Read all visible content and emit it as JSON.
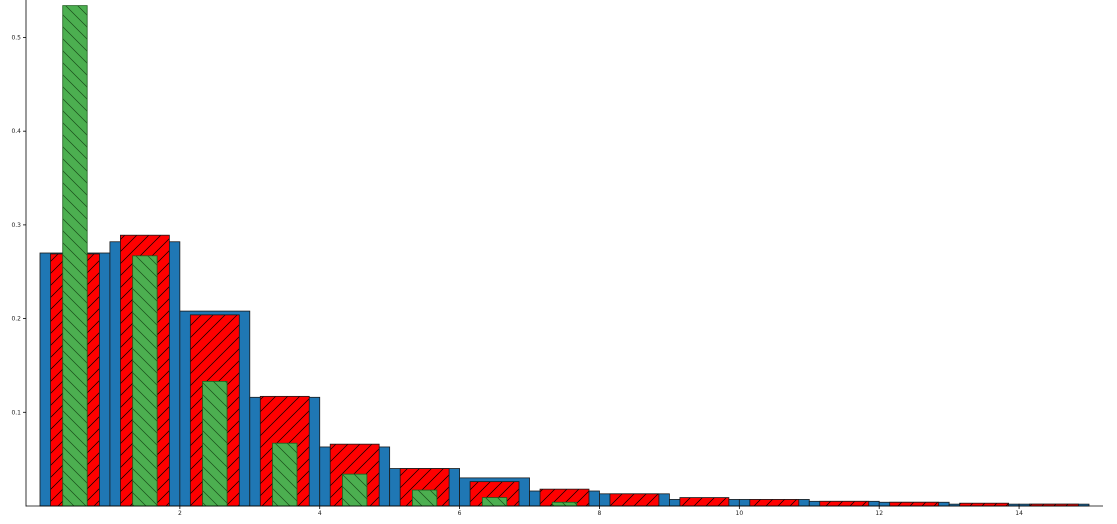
{
  "chart_data": {
    "type": "bar",
    "title": "",
    "xlabel": "",
    "ylabel": "",
    "xlim": [
      -0.2,
      15.2
    ],
    "ylim": [
      0,
      0.54
    ],
    "grid": false,
    "legend": "none",
    "x_ticks": [
      "2",
      "4",
      "6",
      "8",
      "10",
      "12",
      "14"
    ],
    "y_ticks": [
      "0.1",
      "0.2",
      "0.3",
      "0.4",
      "0.5"
    ],
    "series": [
      {
        "color": "#1f77b4",
        "hatch": "none",
        "width": 1.0,
        "offset": 0.0,
        "x": [
          0,
          1,
          2,
          3,
          4,
          5,
          6,
          7,
          8,
          9,
          10,
          11,
          12,
          13,
          14
        ],
        "values": [
          0.27,
          0.282,
          0.208,
          0.116,
          0.063,
          0.04,
          0.03,
          0.016,
          0.013,
          0.007,
          0.007,
          0.005,
          0.004,
          0.002,
          0.002
        ]
      },
      {
        "color": "#ff0000",
        "hatch": "forward",
        "width": 0.7,
        "offset": 0.15,
        "x": [
          0,
          1,
          2,
          3,
          4,
          5,
          6,
          7,
          8,
          9,
          10,
          11,
          12,
          13,
          14
        ],
        "values": [
          0.269,
          0.289,
          0.204,
          0.117,
          0.066,
          0.04,
          0.026,
          0.018,
          0.013,
          0.009,
          0.007,
          0.005,
          0.004,
          0.003,
          0.002
        ]
      },
      {
        "color": "#2ca02c",
        "hatch": "backward",
        "width": 0.35,
        "offset": 0.325,
        "x": [
          0,
          1,
          2,
          3,
          4,
          5,
          6,
          7
        ],
        "values": [
          0.534,
          0.267,
          0.133,
          0.067,
          0.034,
          0.017,
          0.009,
          0.004
        ]
      }
    ]
  }
}
